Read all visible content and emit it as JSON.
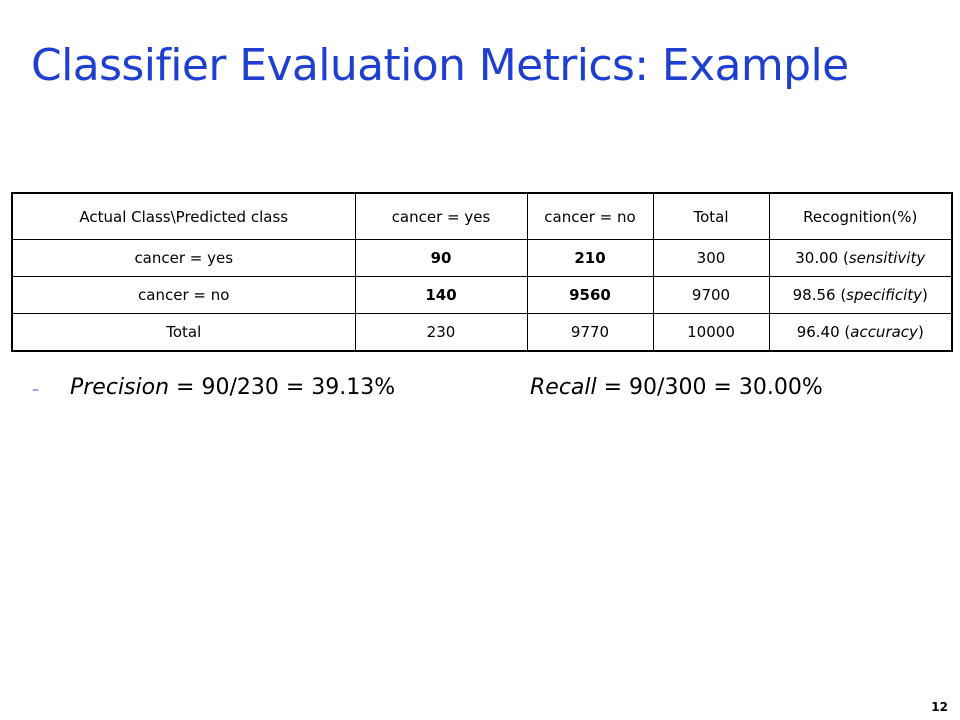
{
  "title": "Classifier Evaluation Metrics: Example",
  "table": {
    "headers": [
      "Actual Class\\Predicted class",
      "cancer = yes",
      "cancer = no",
      "Total",
      "Recognition(%)"
    ],
    "rows": [
      {
        "label": "cancer = yes",
        "cells": [
          "90",
          "210",
          "300"
        ],
        "recognition_value": "30.00 (",
        "recognition_note": "sensitivity",
        "recognition_close": ""
      },
      {
        "label": "cancer = no",
        "cells": [
          "140",
          "9560",
          "9700"
        ],
        "recognition_value": "98.56 (",
        "recognition_note": "specificity",
        "recognition_close": ")"
      },
      {
        "label": "Total",
        "cells": [
          "230",
          "9770",
          "10000"
        ],
        "recognition_value": "96.40 (",
        "recognition_note": "accuracy",
        "recognition_close": ")"
      }
    ]
  },
  "bullet": {
    "dash": "–",
    "precision_term": "Precision",
    "precision_formula": " = 90/230 = 39.13%",
    "recall_term": "Recall",
    "recall_formula": " = 90/300 = 30.00%"
  },
  "page_number": "12",
  "colors": {
    "title": "#1f3fd0",
    "bullet_dash": "#7030a0"
  }
}
